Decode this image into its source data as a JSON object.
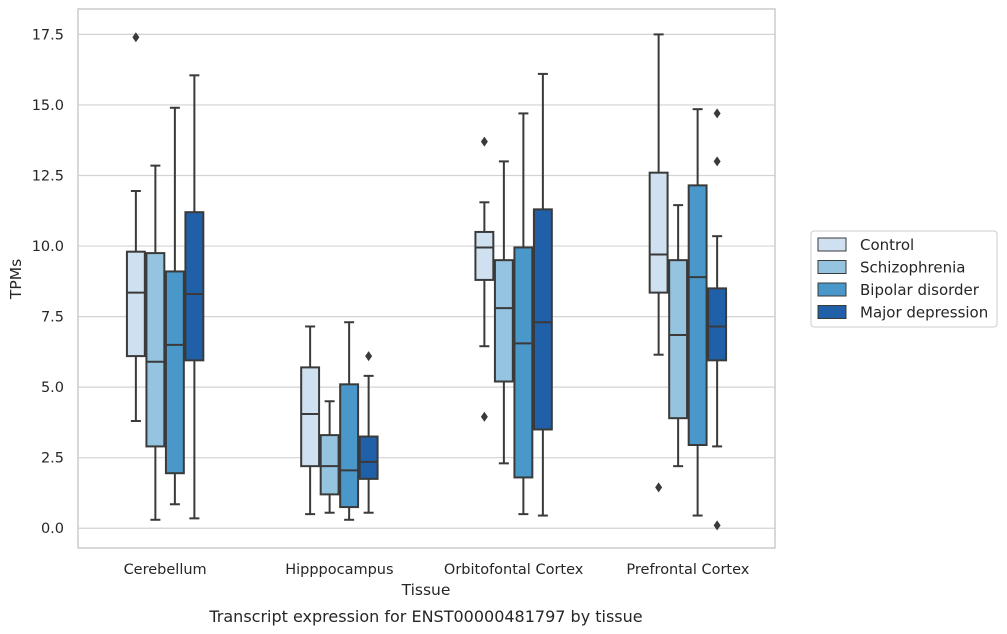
{
  "chart_data": {
    "type": "box",
    "title": "",
    "caption": "Transcript expression for ENST00000481797 by tissue",
    "xlabel": "Tissue",
    "ylabel": "TPMs",
    "ylim": [
      -0.7,
      18.4
    ],
    "yticks": [
      "0.0",
      "2.5",
      "5.0",
      "7.5",
      "10.0",
      "12.5",
      "15.0",
      "17.5"
    ],
    "ytick_values": [
      0,
      2.5,
      5,
      7.5,
      10,
      12.5,
      15,
      17.5
    ],
    "grid": true,
    "legend_position": "right",
    "categories": [
      "Cerebellum",
      "Hipppocampus",
      "Orbitofontal Cortex",
      "Prefrontal Cortex"
    ],
    "series": [
      {
        "name": "Control",
        "color": "#cfe0f1",
        "boxes": [
          {
            "whisker_low": 3.8,
            "q1": 6.1,
            "median": 8.35,
            "q3": 9.8,
            "whisker_high": 11.95,
            "outliers": [
              17.4
            ]
          },
          {
            "whisker_low": 0.5,
            "q1": 2.2,
            "median": 4.05,
            "q3": 5.7,
            "whisker_high": 7.15,
            "outliers": []
          },
          {
            "whisker_low": 6.45,
            "q1": 8.8,
            "median": 9.95,
            "q3": 10.5,
            "whisker_high": 11.55,
            "outliers": [
              3.95,
              13.7
            ]
          },
          {
            "whisker_low": 6.15,
            "q1": 8.35,
            "median": 9.7,
            "q3": 12.6,
            "whisker_high": 17.5,
            "outliers": [
              1.45
            ]
          }
        ]
      },
      {
        "name": "Schizophrenia",
        "color": "#94c4df",
        "boxes": [
          {
            "whisker_low": 0.3,
            "q1": 2.9,
            "median": 5.9,
            "q3": 9.75,
            "whisker_high": 12.85,
            "outliers": []
          },
          {
            "whisker_low": 0.55,
            "q1": 1.2,
            "median": 2.2,
            "q3": 3.3,
            "whisker_high": 4.5,
            "outliers": []
          },
          {
            "whisker_low": 2.3,
            "q1": 5.2,
            "median": 7.8,
            "q3": 9.5,
            "whisker_high": 13.0,
            "outliers": []
          },
          {
            "whisker_low": 2.2,
            "q1": 3.9,
            "median": 6.85,
            "q3": 9.5,
            "whisker_high": 11.45,
            "outliers": []
          }
        ]
      },
      {
        "name": "Bipolar disorder",
        "color": "#4a98c9",
        "boxes": [
          {
            "whisker_low": 0.85,
            "q1": 1.95,
            "median": 6.5,
            "q3": 9.1,
            "whisker_high": 14.9,
            "outliers": []
          },
          {
            "whisker_low": 0.3,
            "q1": 0.75,
            "median": 2.05,
            "q3": 5.1,
            "whisker_high": 7.3,
            "outliers": []
          },
          {
            "whisker_low": 0.5,
            "q1": 1.8,
            "median": 6.55,
            "q3": 9.95,
            "whisker_high": 14.7,
            "outliers": []
          },
          {
            "whisker_low": 0.45,
            "q1": 2.95,
            "median": 8.9,
            "q3": 12.15,
            "whisker_high": 14.85,
            "outliers": []
          }
        ]
      },
      {
        "name": "Major depression",
        "color": "#2060a8",
        "boxes": [
          {
            "whisker_low": 0.35,
            "q1": 5.95,
            "median": 8.3,
            "q3": 11.2,
            "whisker_high": 16.05,
            "outliers": []
          },
          {
            "whisker_low": 0.55,
            "q1": 1.75,
            "median": 2.35,
            "q3": 3.25,
            "whisker_high": 5.4,
            "outliers": [
              6.1
            ]
          },
          {
            "whisker_low": 0.45,
            "q1": 3.5,
            "median": 7.3,
            "q3": 11.3,
            "whisker_high": 16.1,
            "outliers": []
          },
          {
            "whisker_low": 2.9,
            "q1": 5.95,
            "median": 7.15,
            "q3": 8.5,
            "whisker_high": 10.35,
            "outliers": [
              0.1,
              13.0,
              14.7
            ]
          }
        ]
      }
    ]
  }
}
